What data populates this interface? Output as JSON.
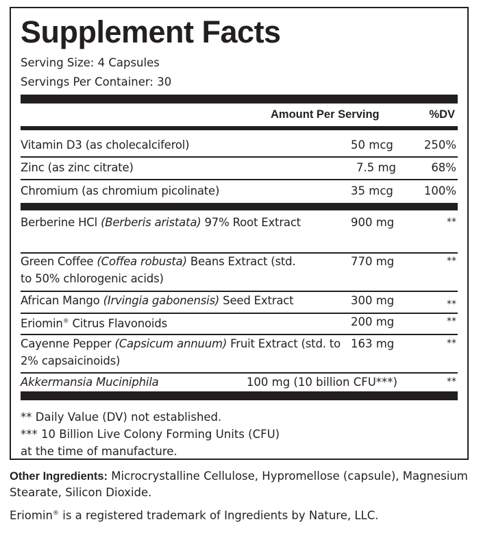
{
  "title": "Supplement Facts",
  "serving_size": "Serving Size: 4 Capsules",
  "servings_per_container": "Servings Per Container: 30",
  "header": {
    "amount": "Amount Per Serving",
    "dv": "%DV"
  },
  "vitamins": [
    {
      "name": "Vitamin D3 (as cholecalciferol)",
      "amount": "50 mcg",
      "dv": "250%"
    },
    {
      "name": "Zinc (as zinc citrate)",
      "amount": "7.5 mg",
      "dv": "68%"
    },
    {
      "name": "Chromium (as chromium picolinate)",
      "amount": "35 mcg",
      "dv": "100%"
    }
  ],
  "ingredients": [
    {
      "name": "Berberine HCl ",
      "latin": "(Berberis aristata)",
      "rest": " 97% Root Extract",
      "amount": "900 mg",
      "dv": "**"
    },
    {
      "name": "Green Coffee ",
      "latin": "(Coffea robusta)",
      "rest": " Beans Extract (std. to 50% chlorogenic acids)",
      "amount": "770 mg",
      "dv": "**"
    },
    {
      "name": "African Mango ",
      "latin": "(Irvingia gabonensis)",
      "rest": " Seed Extract",
      "amount": "300 mg",
      "dv": "**"
    },
    {
      "name": "Eriomin",
      "reg": "®",
      "rest": " Citrus Flavonoids",
      "amount": "200 mg",
      "dv": "**"
    },
    {
      "name": "Cayenne Pepper ",
      "latin": "(Capsicum annuum)",
      "rest": " Fruit Extract (std. to 2% capsaicinoids)",
      "amount": "163 mg",
      "dv": "**"
    },
    {
      "latin": "Akkermansia Muciniphila",
      "amount": "100 mg (10 billion CFU***)",
      "dv": "**"
    }
  ],
  "footnotes": [
    "** Daily Value (DV) not established.",
    "*** 10 Billion Live Colony Forming Units (CFU)",
    "at the time of manufacture."
  ],
  "other_ingredients": {
    "label": "Other Ingredients:",
    "text": " Microcrystalline Cellulose, Hypromellose (capsule), Magnesium Stearate, Silicon Dioxide."
  },
  "trademark": {
    "name": "Eriomin",
    "reg": "®",
    "text": " is a registered trademark of Ingredients by Nature, LLC."
  }
}
